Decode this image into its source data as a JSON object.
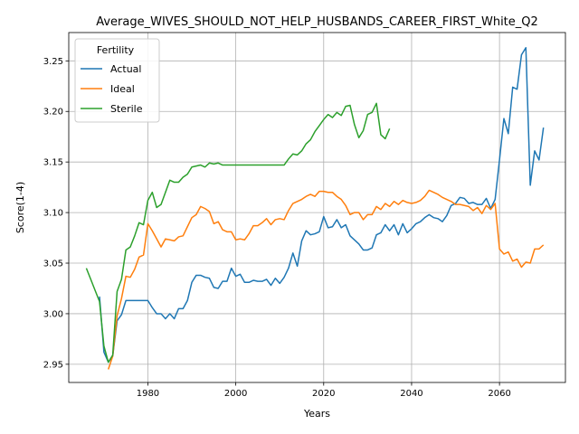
{
  "chart_data": {
    "type": "line",
    "title": "Average_WIVES_SHOULD_NOT_HELP_HUSBANDS_CAREER_FIRST_White_Q2",
    "xlabel": "Years",
    "ylabel": "Score(1-4)",
    "xlim": [
      1962,
      2075
    ],
    "ylim": [
      2.932,
      3.278
    ],
    "xticks": [
      1980,
      2000,
      2020,
      2040,
      2060
    ],
    "yticks": [
      2.95,
      3.0,
      3.05,
      3.1,
      3.15,
      3.2,
      3.25
    ],
    "ytick_labels": [
      "2.95",
      "3.00",
      "3.05",
      "3.10",
      "3.15",
      "3.20",
      "3.25"
    ],
    "grid": true,
    "legend": {
      "title": "Fertility",
      "position": "top-left"
    },
    "series": [
      {
        "name": "Actual",
        "color": "#1f77b4",
        "points": [
          [
            1969,
            3.017
          ],
          [
            1970,
            2.962
          ],
          [
            1971,
            2.952
          ],
          [
            1972,
            2.958
          ],
          [
            1973,
            2.993
          ],
          [
            1974,
            2.999
          ],
          [
            1975,
            3.013
          ],
          [
            1976,
            3.013
          ],
          [
            1977,
            3.013
          ],
          [
            1978,
            3.013
          ],
          [
            1979,
            3.013
          ],
          [
            1980,
            3.013
          ],
          [
            1981,
            3.006
          ],
          [
            1982,
            3.0
          ],
          [
            1983,
            3.0
          ],
          [
            1984,
            2.995
          ],
          [
            1985,
            3.0
          ],
          [
            1986,
            2.995
          ],
          [
            1987,
            3.005
          ],
          [
            1988,
            3.005
          ],
          [
            1989,
            3.013
          ],
          [
            1990,
            3.031
          ],
          [
            1991,
            3.038
          ],
          [
            1992,
            3.038
          ],
          [
            1993,
            3.036
          ],
          [
            1994,
            3.035
          ],
          [
            1995,
            3.026
          ],
          [
            1996,
            3.025
          ],
          [
            1997,
            3.032
          ],
          [
            1998,
            3.032
          ],
          [
            1999,
            3.045
          ],
          [
            2000,
            3.037
          ],
          [
            2001,
            3.039
          ],
          [
            2002,
            3.031
          ],
          [
            2003,
            3.031
          ],
          [
            2004,
            3.033
          ],
          [
            2005,
            3.032
          ],
          [
            2006,
            3.032
          ],
          [
            2007,
            3.034
          ],
          [
            2008,
            3.028
          ],
          [
            2009,
            3.035
          ],
          [
            2010,
            3.03
          ],
          [
            2011,
            3.036
          ],
          [
            2012,
            3.045
          ],
          [
            2013,
            3.06
          ],
          [
            2014,
            3.047
          ],
          [
            2015,
            3.072
          ],
          [
            2016,
            3.082
          ],
          [
            2017,
            3.078
          ],
          [
            2018,
            3.079
          ],
          [
            2019,
            3.081
          ],
          [
            2020,
            3.096
          ],
          [
            2021,
            3.085
          ],
          [
            2022,
            3.086
          ],
          [
            2023,
            3.093
          ],
          [
            2024,
            3.085
          ],
          [
            2025,
            3.088
          ],
          [
            2026,
            3.077
          ],
          [
            2027,
            3.073
          ],
          [
            2028,
            3.069
          ],
          [
            2029,
            3.063
          ],
          [
            2030,
            3.063
          ],
          [
            2031,
            3.065
          ],
          [
            2032,
            3.078
          ],
          [
            2033,
            3.08
          ],
          [
            2034,
            3.088
          ],
          [
            2035,
            3.082
          ],
          [
            2036,
            3.088
          ],
          [
            2037,
            3.078
          ],
          [
            2038,
            3.089
          ],
          [
            2039,
            3.08
          ],
          [
            2040,
            3.084
          ],
          [
            2041,
            3.089
          ],
          [
            2042,
            3.091
          ],
          [
            2043,
            3.095
          ],
          [
            2044,
            3.098
          ],
          [
            2045,
            3.095
          ],
          [
            2046,
            3.094
          ],
          [
            2047,
            3.091
          ],
          [
            2048,
            3.097
          ],
          [
            2049,
            3.107
          ],
          [
            2050,
            3.109
          ],
          [
            2051,
            3.115
          ],
          [
            2052,
            3.114
          ],
          [
            2053,
            3.109
          ],
          [
            2054,
            3.11
          ],
          [
            2055,
            3.108
          ],
          [
            2056,
            3.108
          ],
          [
            2057,
            3.114
          ],
          [
            2058,
            3.104
          ],
          [
            2059,
            3.113
          ],
          [
            2060,
            3.152
          ],
          [
            2061,
            3.193
          ],
          [
            2062,
            3.178
          ],
          [
            2063,
            3.224
          ],
          [
            2064,
            3.222
          ],
          [
            2065,
            3.256
          ],
          [
            2066,
            3.263
          ],
          [
            2067,
            3.127
          ],
          [
            2068,
            3.161
          ],
          [
            2069,
            3.152
          ],
          [
            2070,
            3.184
          ]
        ]
      },
      {
        "name": "Ideal",
        "color": "#ff7f0e",
        "points": [
          [
            1971,
            2.945
          ],
          [
            1972,
            2.958
          ],
          [
            1973,
            2.998
          ],
          [
            1974,
            3.015
          ],
          [
            1975,
            3.037
          ],
          [
            1976,
            3.036
          ],
          [
            1977,
            3.044
          ],
          [
            1978,
            3.056
          ],
          [
            1979,
            3.058
          ],
          [
            1980,
            3.089
          ],
          [
            1981,
            3.082
          ],
          [
            1982,
            3.074
          ],
          [
            1983,
            3.066
          ],
          [
            1984,
            3.074
          ],
          [
            1985,
            3.073
          ],
          [
            1986,
            3.072
          ],
          [
            1987,
            3.076
          ],
          [
            1988,
            3.077
          ],
          [
            1989,
            3.086
          ],
          [
            1990,
            3.095
          ],
          [
            1991,
            3.098
          ],
          [
            1992,
            3.106
          ],
          [
            1993,
            3.104
          ],
          [
            1994,
            3.101
          ],
          [
            1995,
            3.089
          ],
          [
            1996,
            3.091
          ],
          [
            1997,
            3.083
          ],
          [
            1998,
            3.081
          ],
          [
            1999,
            3.081
          ],
          [
            2000,
            3.073
          ],
          [
            2001,
            3.074
          ],
          [
            2002,
            3.073
          ],
          [
            2003,
            3.079
          ],
          [
            2004,
            3.087
          ],
          [
            2005,
            3.087
          ],
          [
            2006,
            3.09
          ],
          [
            2007,
            3.094
          ],
          [
            2008,
            3.088
          ],
          [
            2009,
            3.093
          ],
          [
            2010,
            3.094
          ],
          [
            2011,
            3.093
          ],
          [
            2012,
            3.102
          ],
          [
            2013,
            3.109
          ],
          [
            2014,
            3.111
          ],
          [
            2015,
            3.113
          ],
          [
            2016,
            3.116
          ],
          [
            2017,
            3.118
          ],
          [
            2018,
            3.116
          ],
          [
            2019,
            3.121
          ],
          [
            2020,
            3.121
          ],
          [
            2021,
            3.12
          ],
          [
            2022,
            3.12
          ],
          [
            2023,
            3.116
          ],
          [
            2024,
            3.113
          ],
          [
            2025,
            3.107
          ],
          [
            2026,
            3.098
          ],
          [
            2027,
            3.1
          ],
          [
            2028,
            3.1
          ],
          [
            2029,
            3.093
          ],
          [
            2030,
            3.098
          ],
          [
            2031,
            3.098
          ],
          [
            2032,
            3.106
          ],
          [
            2033,
            3.103
          ],
          [
            2034,
            3.109
          ],
          [
            2035,
            3.106
          ],
          [
            2036,
            3.111
          ],
          [
            2037,
            3.108
          ],
          [
            2038,
            3.112
          ],
          [
            2039,
            3.11
          ],
          [
            2040,
            3.109
          ],
          [
            2041,
            3.11
          ],
          [
            2042,
            3.112
          ],
          [
            2043,
            3.116
          ],
          [
            2044,
            3.122
          ],
          [
            2045,
            3.12
          ],
          [
            2046,
            3.118
          ],
          [
            2047,
            3.115
          ],
          [
            2048,
            3.113
          ],
          [
            2049,
            3.111
          ],
          [
            2050,
            3.108
          ],
          [
            2051,
            3.108
          ],
          [
            2052,
            3.107
          ],
          [
            2053,
            3.106
          ],
          [
            2054,
            3.102
          ],
          [
            2055,
            3.105
          ],
          [
            2056,
            3.099
          ],
          [
            2057,
            3.107
          ],
          [
            2058,
            3.103
          ],
          [
            2059,
            3.109
          ],
          [
            2060,
            3.064
          ],
          [
            2061,
            3.059
          ],
          [
            2062,
            3.061
          ],
          [
            2063,
            3.052
          ],
          [
            2064,
            3.054
          ],
          [
            2065,
            3.046
          ],
          [
            2066,
            3.051
          ],
          [
            2067,
            3.05
          ],
          [
            2068,
            3.064
          ],
          [
            2069,
            3.064
          ],
          [
            2070,
            3.068
          ]
        ]
      },
      {
        "name": "Sterile",
        "color": "#2ca02c",
        "points": [
          [
            1966,
            3.045
          ],
          [
            1967,
            3.034
          ],
          [
            1968,
            3.023
          ],
          [
            1969,
            3.012
          ],
          [
            1970,
            2.968
          ],
          [
            1971,
            2.952
          ],
          [
            1972,
            2.959
          ],
          [
            1973,
            3.022
          ],
          [
            1974,
            3.034
          ],
          [
            1975,
            3.063
          ],
          [
            1976,
            3.066
          ],
          [
            1977,
            3.077
          ],
          [
            1978,
            3.09
          ],
          [
            1979,
            3.088
          ],
          [
            1980,
            3.112
          ],
          [
            1981,
            3.12
          ],
          [
            1982,
            3.105
          ],
          [
            1983,
            3.108
          ],
          [
            1984,
            3.12
          ],
          [
            1985,
            3.132
          ],
          [
            1986,
            3.13
          ],
          [
            1987,
            3.13
          ],
          [
            1988,
            3.135
          ],
          [
            1989,
            3.138
          ],
          [
            1990,
            3.145
          ],
          [
            1991,
            3.146
          ],
          [
            1992,
            3.147
          ],
          [
            1993,
            3.145
          ],
          [
            1994,
            3.149
          ],
          [
            1995,
            3.148
          ],
          [
            1996,
            3.149
          ],
          [
            1997,
            3.147
          ],
          [
            1998,
            3.147
          ],
          [
            1999,
            3.147
          ],
          [
            2000,
            3.147
          ],
          [
            2001,
            3.147
          ],
          [
            2002,
            3.147
          ],
          [
            2003,
            3.147
          ],
          [
            2004,
            3.147
          ],
          [
            2005,
            3.147
          ],
          [
            2006,
            3.147
          ],
          [
            2007,
            3.147
          ],
          [
            2008,
            3.147
          ],
          [
            2009,
            3.147
          ],
          [
            2010,
            3.147
          ],
          [
            2011,
            3.147
          ],
          [
            2012,
            3.153
          ],
          [
            2013,
            3.158
          ],
          [
            2014,
            3.157
          ],
          [
            2015,
            3.161
          ],
          [
            2016,
            3.168
          ],
          [
            2017,
            3.172
          ],
          [
            2018,
            3.18
          ],
          [
            2019,
            3.186
          ],
          [
            2020,
            3.192
          ],
          [
            2021,
            3.197
          ],
          [
            2022,
            3.194
          ],
          [
            2023,
            3.199
          ],
          [
            2024,
            3.196
          ],
          [
            2025,
            3.205
          ],
          [
            2026,
            3.206
          ],
          [
            2027,
            3.187
          ],
          [
            2028,
            3.174
          ],
          [
            2029,
            3.181
          ],
          [
            2030,
            3.197
          ],
          [
            2031,
            3.199
          ],
          [
            2032,
            3.208
          ],
          [
            2033,
            3.177
          ],
          [
            2034,
            3.173
          ],
          [
            2035,
            3.183
          ]
        ]
      }
    ]
  }
}
